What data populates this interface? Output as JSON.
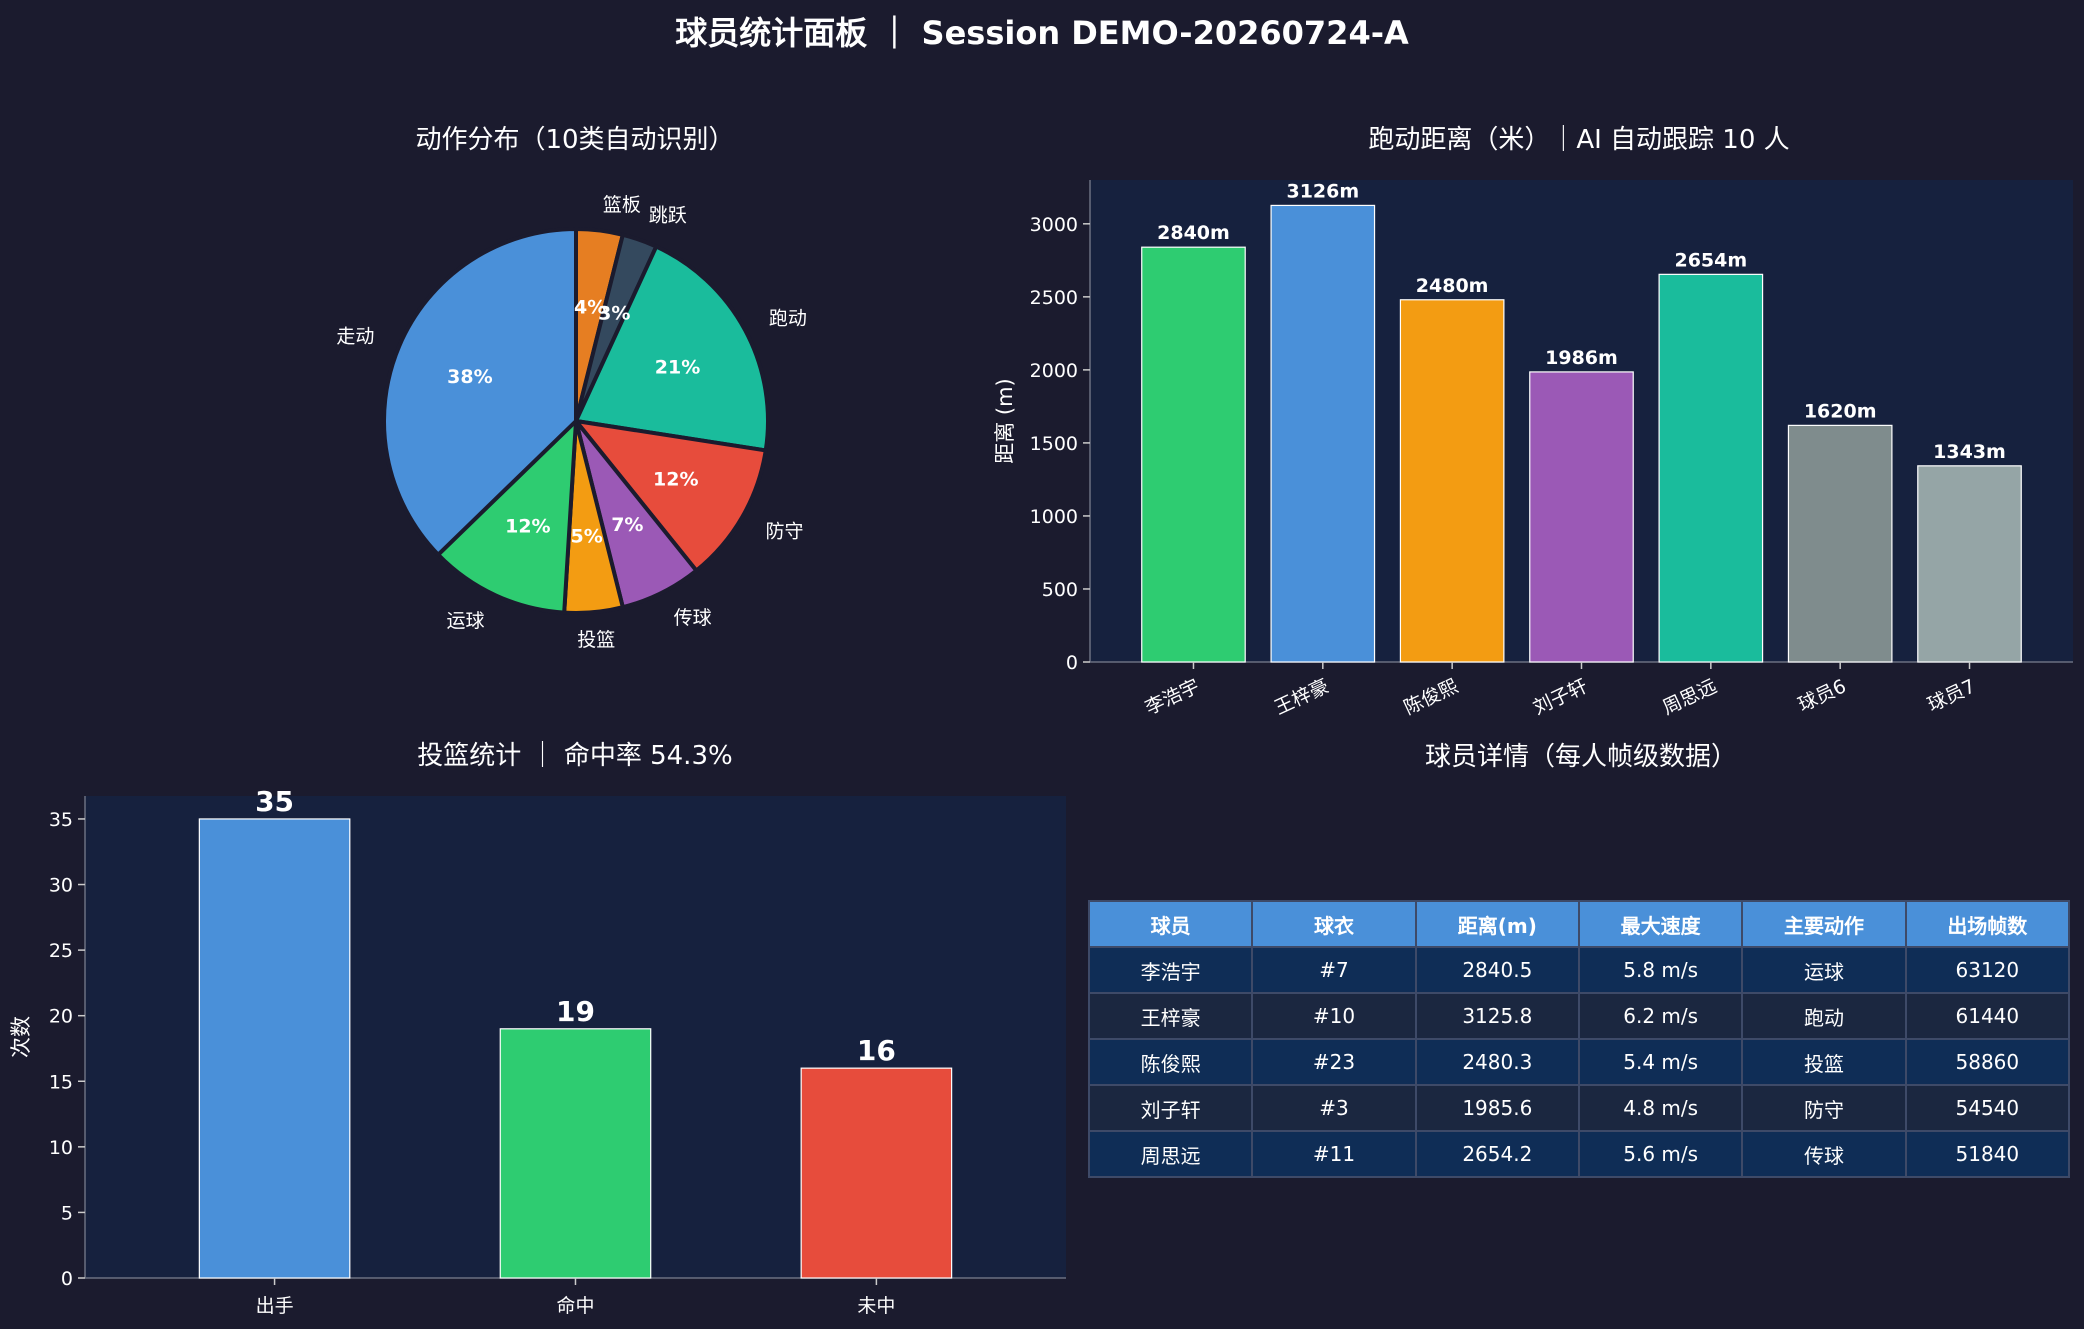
{
  "title": "球员统计面板 ｜ Session DEMO-20260724-A",
  "chart_data": [
    {
      "type": "pie",
      "title": "动作分布（10类自动识别）",
      "slices": [
        {
          "label": "篮板",
          "value": 4,
          "pct_label": "4%",
          "color": "#e67e22"
        },
        {
          "label": "跳跃",
          "value": 3,
          "pct_label": "3%",
          "color": "#34495e"
        },
        {
          "label": "跑动",
          "value": 21,
          "pct_label": "21%",
          "color": "#1abc9c"
        },
        {
          "label": "防守",
          "value": 12,
          "pct_label": "12%",
          "color": "#e74c3c"
        },
        {
          "label": "传球",
          "value": 7,
          "pct_label": "7%",
          "color": "#9b59b6"
        },
        {
          "label": "投篮",
          "value": 5,
          "pct_label": "5%",
          "color": "#f39c12"
        },
        {
          "label": "运球",
          "value": 12,
          "pct_label": "12%",
          "color": "#2ecc71"
        },
        {
          "label": "走动",
          "value": 38,
          "pct_label": "38%",
          "color": "#4a90d9"
        }
      ]
    },
    {
      "type": "bar",
      "title": "跑动距离（米）｜AI 自动跟踪 10 人",
      "ylabel": "距离 (m)",
      "ylim": [
        0,
        3300
      ],
      "yticks": [
        0,
        500,
        1000,
        1500,
        2000,
        2500,
        3000
      ],
      "categories": [
        "李浩宇",
        "王梓豪",
        "陈俊熙",
        "刘子轩",
        "周思远",
        "球员6",
        "球员7"
      ],
      "values": [
        2840,
        3126,
        2480,
        1986,
        2654,
        1620,
        1343
      ],
      "value_labels": [
        "2840m",
        "3126m",
        "2480m",
        "1986m",
        "2654m",
        "1620m",
        "1343m"
      ],
      "colors": [
        "#2ecc71",
        "#4a90d9",
        "#f39c12",
        "#9b59b6",
        "#1abc9c",
        "#7f8c8d",
        "#95a5a6"
      ]
    },
    {
      "type": "bar",
      "title": "投篮统计 ｜ 命中率 54.3%",
      "ylabel": "次数",
      "ylim": [
        0,
        36.75
      ],
      "yticks": [
        0,
        5,
        10,
        15,
        20,
        25,
        30,
        35
      ],
      "categories": [
        "出手",
        "命中",
        "未中"
      ],
      "values": [
        35,
        19,
        16
      ],
      "value_labels": [
        "35",
        "19",
        "16"
      ],
      "colors": [
        "#4a90d9",
        "#2ecc71",
        "#e74c3c"
      ]
    }
  ],
  "table": {
    "title": "球员详情（每人帧级数据）",
    "headers": [
      "球员",
      "球衣",
      "距离(m)",
      "最大速度",
      "主要动作",
      "出场帧数"
    ],
    "rows": [
      [
        "李浩宇",
        "#7",
        "2840.5",
        "5.8 m/s",
        "运球",
        "63120"
      ],
      [
        "王梓豪",
        "#10",
        "3125.8",
        "6.2 m/s",
        "跑动",
        "61440"
      ],
      [
        "陈俊熙",
        "#23",
        "2480.3",
        "5.4 m/s",
        "投篮",
        "58860"
      ],
      [
        "刘子轩",
        "#3",
        "1985.6",
        "4.8 m/s",
        "防守",
        "54540"
      ],
      [
        "周思远",
        "#11",
        "2654.2",
        "5.6 m/s",
        "传球",
        "51840"
      ]
    ]
  },
  "colors": {
    "background": "#1b1b2e",
    "plot_background": "#16213e",
    "table_header": "#4a90d9"
  }
}
